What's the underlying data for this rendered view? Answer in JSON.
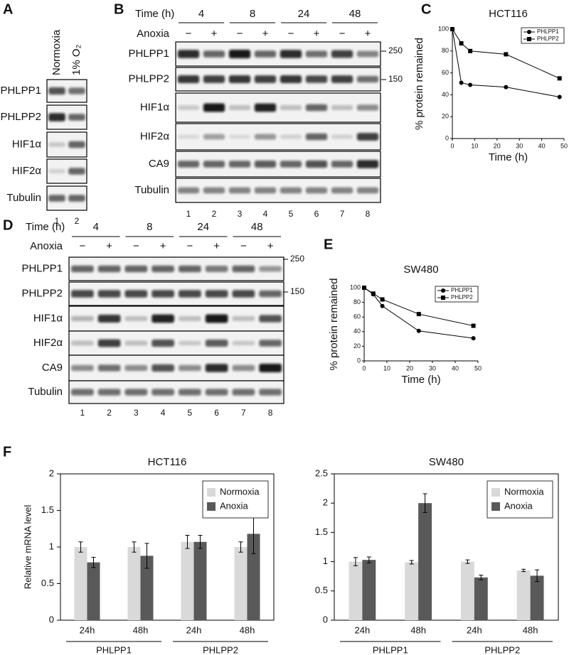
{
  "panels": [
    "A",
    "B",
    "C",
    "D",
    "E",
    "F"
  ],
  "blots": [
    {
      "conditions": [
        "Normoxia",
        "1% O₂"
      ],
      "rows": [
        "PHLPP1",
        "PHLPP2",
        "HIF1α",
        "HIF2α",
        "Tubulin"
      ],
      "lanes": [
        "1",
        "2"
      ]
    },
    {
      "time_label": "Time (h)",
      "times": [
        "4",
        "8",
        "24",
        "48"
      ],
      "treatment": "Anoxia",
      "signs": [
        "−",
        "+"
      ],
      "rows": [
        "PHLPP1",
        "PHLPP2",
        "HIF1α",
        "HIF2α",
        "CA9",
        "Tubulin"
      ],
      "markers": [
        "250",
        "150"
      ],
      "lanes": [
        "1",
        "2",
        "3",
        "4",
        "5",
        "6",
        "7",
        "8"
      ]
    },
    {
      "time_label": "Time (h)",
      "times": [
        "4",
        "8",
        "24",
        "48"
      ],
      "treatment": "Anoxia",
      "signs": [
        "−",
        "+"
      ],
      "rows": [
        "PHLPP1",
        "PHLPP2",
        "HIF1α",
        "HIF2α",
        "CA9",
        "Tubulin"
      ],
      "markers": [
        "250",
        "150"
      ],
      "lanes": [
        "1",
        "2",
        "3",
        "4",
        "5",
        "6",
        "7",
        "8"
      ]
    }
  ],
  "chart_data": [
    {
      "type": "line",
      "title": "HCT116",
      "xlabel": "Time (h)",
      "ylabel": "% protein remained",
      "x": [
        0,
        4,
        8,
        24,
        48
      ],
      "xlim": [
        0,
        50
      ],
      "xticks": [
        0,
        10,
        20,
        30,
        40,
        50
      ],
      "ylim": [
        0,
        100
      ],
      "yticks": [
        0,
        20,
        40,
        60,
        80,
        100
      ],
      "legend": "upper right",
      "series": [
        {
          "name": "PHLPP1",
          "color": "#000000",
          "marker": "circle",
          "values": [
            100,
            51,
            49,
            47,
            38
          ]
        },
        {
          "name": "PHLPP2",
          "color": "#000000",
          "marker": "square",
          "values": [
            100,
            87,
            80,
            77,
            55
          ]
        }
      ]
    },
    {
      "type": "line",
      "title": "SW480",
      "xlabel": "Time (h)",
      "ylabel": "% protein remained",
      "x": [
        0,
        4,
        8,
        24,
        48
      ],
      "xlim": [
        0,
        50
      ],
      "xticks": [
        0,
        10,
        20,
        30,
        40,
        50
      ],
      "ylim": [
        0,
        100
      ],
      "yticks": [
        0,
        20,
        40,
        60,
        80,
        100
      ],
      "legend": "upper right",
      "series": [
        {
          "name": "PHLPP1",
          "color": "#000000",
          "marker": "circle",
          "values": [
            100,
            91,
            75,
            41,
            31
          ]
        },
        {
          "name": "PHLPP2",
          "color": "#000000",
          "marker": "square",
          "values": [
            100,
            92,
            84,
            64,
            48
          ]
        }
      ]
    },
    {
      "type": "bar",
      "title": "HCT116",
      "ylabel": "Relative mRNA level",
      "categories": [
        "24h",
        "48h",
        "24h",
        "48h"
      ],
      "groups": [
        "PHLPP1",
        "PHLPP2"
      ],
      "ylim": [
        0,
        2
      ],
      "yticks": [
        0,
        0.5,
        1,
        1.5,
        2
      ],
      "legend": "upper right",
      "series": [
        {
          "name": "Normoxia",
          "color": "#d9d9d9",
          "values": [
            1,
            1,
            1.07,
            1
          ],
          "errors": [
            0.07,
            0.07,
            0.09,
            0.07
          ]
        },
        {
          "name": "Anoxia",
          "color": "#595959",
          "values": [
            0.79,
            0.88,
            1.07,
            1.18
          ],
          "errors": [
            0.07,
            0.17,
            0.09,
            0.27
          ]
        }
      ]
    },
    {
      "type": "bar",
      "title": "SW480",
      "categories": [
        "24h",
        "48h",
        "24h",
        "48h"
      ],
      "groups": [
        "PHLPP1",
        "PHLPP2"
      ],
      "ylim": [
        0,
        2.5
      ],
      "yticks": [
        0,
        0.5,
        1,
        1.5,
        2,
        2.5
      ],
      "legend": "upper right",
      "series": [
        {
          "name": "Normoxia",
          "color": "#d9d9d9",
          "values": [
            1,
            0.99,
            1,
            0.85
          ],
          "errors": [
            0.07,
            0.03,
            0.03,
            0.02
          ]
        },
        {
          "name": "Anoxia",
          "color": "#595959",
          "values": [
            1.03,
            2,
            0.73,
            0.76
          ],
          "errors": [
            0.05,
            0.16,
            0.04,
            0.1
          ]
        }
      ]
    }
  ]
}
